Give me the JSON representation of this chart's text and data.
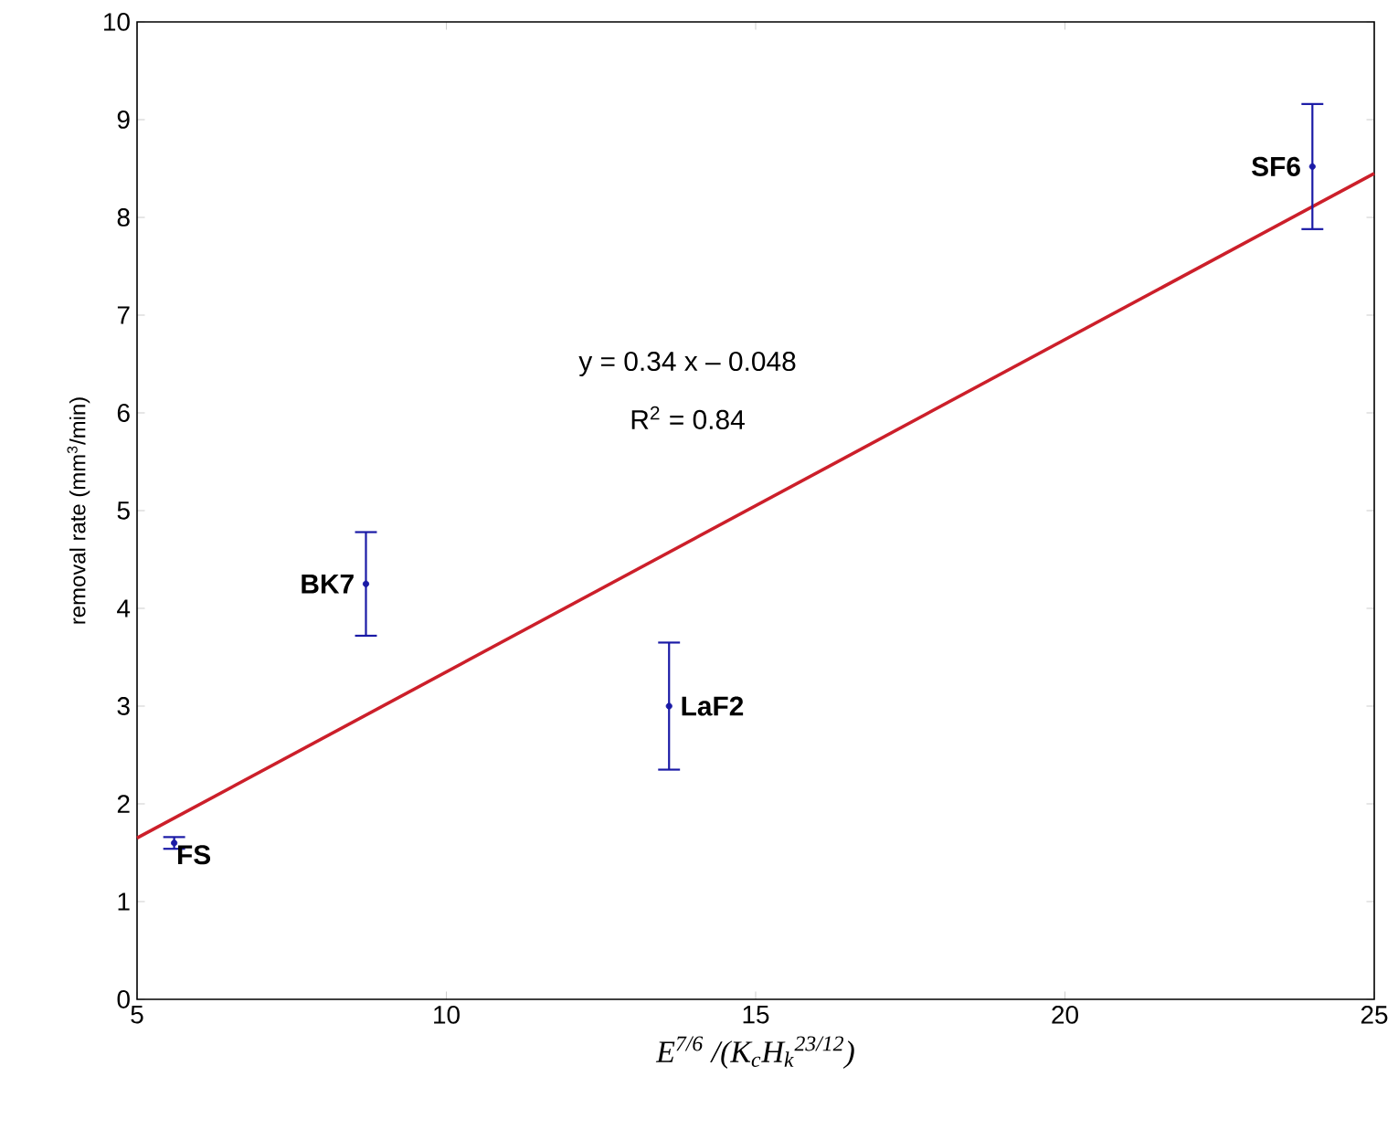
{
  "chart_data": {
    "type": "scatter",
    "xlabel": "E$^{7/6}$ /(K$_{c}$H$_{k}$$^{23/12}$)",
    "ylabel": "removal rate (mm$^{3}$/min)",
    "xlim": [
      5,
      25
    ],
    "xticks": [
      5,
      10,
      15,
      20,
      25
    ],
    "ylim": [
      0,
      10
    ],
    "yticks": [
      0,
      1,
      2,
      3,
      4,
      5,
      6,
      7,
      8,
      9,
      10
    ],
    "series": [
      {
        "type": "line",
        "color": "#cc1f2a",
        "x": [
          5,
          25
        ],
        "values": [
          1.65,
          8.45
        ],
        "marker": "none",
        "line_style": "solid"
      },
      {
        "color": "#1a1aa6",
        "x": [
          5.6,
          8.7,
          13.6,
          24.0
        ],
        "values": [
          1.6,
          4.25,
          3.0,
          8.52
        ],
        "errors": [
          0.06,
          0.53,
          0.65,
          0.64
        ],
        "marker": "circle"
      }
    ],
    "annotations": [
      "y = 0.34 x – 0.048",
      "R$^{2}$ = 0.84",
      {
        "text": "FS",
        "x": 5.6,
        "y": 1.6
      },
      {
        "text": "BK7",
        "x": 8.7,
        "y": 4.25
      },
      {
        "text": "LaF2",
        "x": 13.6,
        "y": 3.0
      },
      {
        "text": "SF6",
        "x": 24.0,
        "y": 8.52
      }
    ]
  }
}
